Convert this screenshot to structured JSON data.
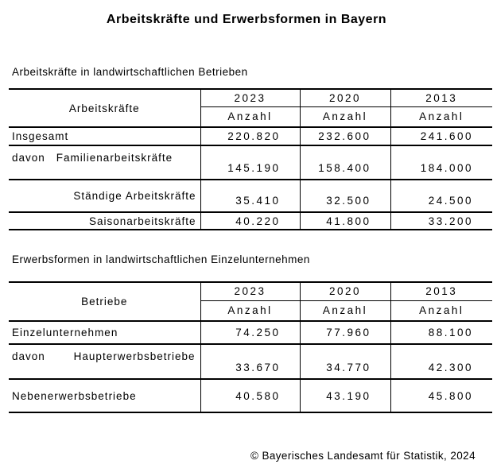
{
  "page": {
    "title": "Arbeitskräfte und Erwerbsformen in Bayern",
    "footer": "© Bayerisches Landesamt für Statistik, 2024"
  },
  "colors": {
    "text": "#000000",
    "lines": "#000000",
    "background": "#ffffff"
  },
  "tables": [
    {
      "section_label": "Arbeitskräfte in landwirtschaftlichen Betrieben",
      "row_header": "Arbeitskräfte",
      "unit_label": "Anzahl",
      "years": [
        "2023",
        "2020",
        "2013"
      ],
      "rows": [
        {
          "prefix": "",
          "label": "Insgesamt",
          "values": [
            "220.820",
            "232.600",
            "241.600"
          ]
        },
        {
          "prefix": "davon",
          "label": "Familienarbeitskräfte",
          "values": [
            "145.190",
            "158.400",
            "184.000"
          ]
        },
        {
          "prefix": "",
          "label": "Ständige Arbeitskräfte",
          "values": [
            "35.410",
            "32.500",
            "24.500"
          ]
        },
        {
          "prefix": "",
          "label": "Saisonarbeitskräfte",
          "values": [
            "40.220",
            "41.800",
            "33.200"
          ]
        }
      ]
    },
    {
      "section_label": "Erwerbsformen in landwirtschaftlichen Einzelunternehmen",
      "row_header": "Betriebe",
      "unit_label": "Anzahl",
      "years": [
        "2023",
        "2020",
        "2013"
      ],
      "rows": [
        {
          "prefix": "",
          "label": "Einzelunternehmen",
          "values": [
            "74.250",
            "77.960",
            "88.100"
          ]
        },
        {
          "prefix": "davon",
          "label": "Haupterwerbsbetriebe",
          "values": [
            "33.670",
            "34.770",
            "42.300"
          ]
        },
        {
          "prefix": "",
          "label": "Nebenerwerbsbetriebe",
          "values": [
            "40.580",
            "43.190",
            "45.800"
          ]
        }
      ]
    }
  ]
}
